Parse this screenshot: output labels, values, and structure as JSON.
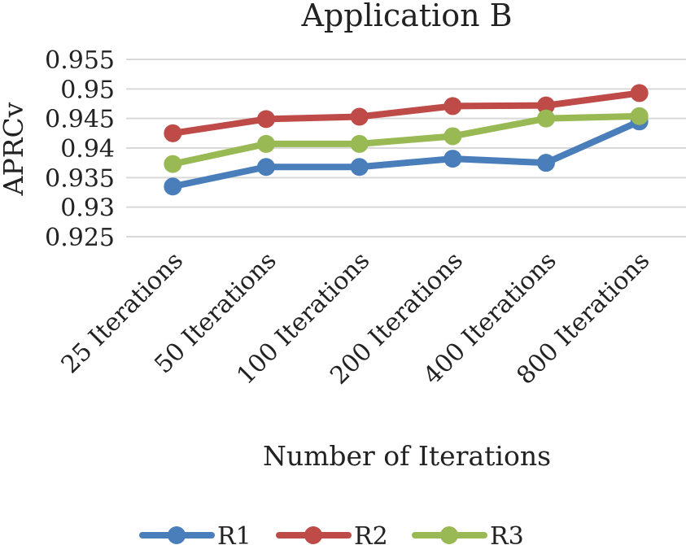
{
  "chart_data": {
    "type": "line",
    "title": "Application B",
    "xlabel": "Number of Iterations",
    "ylabel": "APRCv",
    "categories": [
      "25 Iterations",
      "50 Iterations",
      "100 Iterations",
      "200 Iterations",
      "400 Iterations",
      "800 Iterations"
    ],
    "ylim": [
      0.925,
      0.955
    ],
    "yticks": [
      "0.955",
      "0.95",
      "0.945",
      "0.94",
      "0.935",
      "0.93",
      "0.925"
    ],
    "grid": true,
    "legend_position": "bottom",
    "series": [
      {
        "name": "R1",
        "color": "#4a7ebb",
        "values": [
          0.9335,
          0.9368,
          0.9368,
          0.9382,
          0.9375,
          0.9445
        ]
      },
      {
        "name": "R2",
        "color": "#be4b48",
        "values": [
          0.9425,
          0.9449,
          0.9453,
          0.9471,
          0.9472,
          0.9493
        ]
      },
      {
        "name": "R3",
        "color": "#98b954",
        "values": [
          0.9373,
          0.9407,
          0.9407,
          0.942,
          0.945,
          0.9454
        ]
      }
    ]
  }
}
